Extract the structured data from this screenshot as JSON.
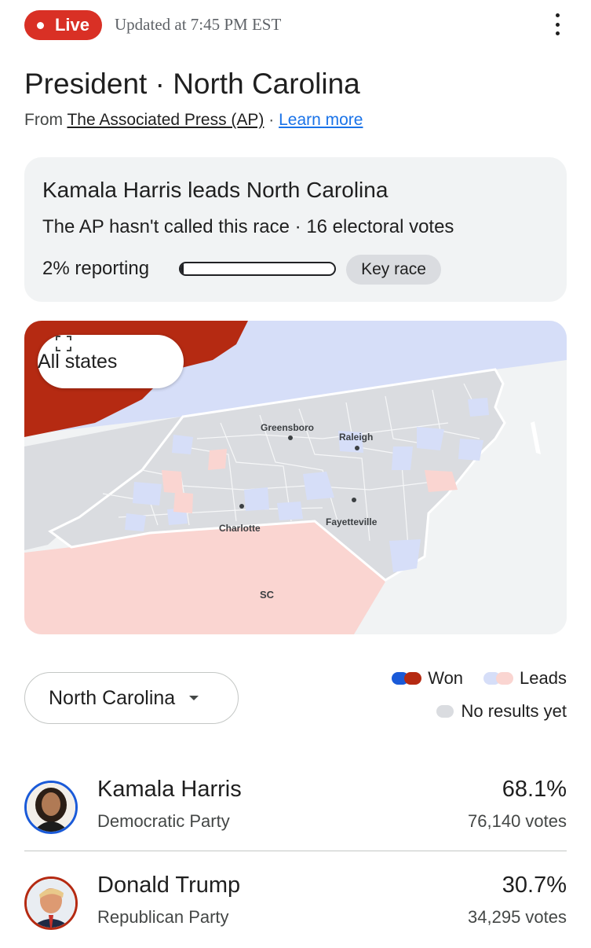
{
  "status": {
    "live_label": "Live",
    "updated": "Updated at 7:45 PM EST"
  },
  "title": "President · North Carolina",
  "source": {
    "prefix": "From",
    "name": "The Associated Press (AP)",
    "separator": "·",
    "learn_more": "Learn more"
  },
  "race": {
    "headline": "Kamala Harris leads North Carolina",
    "subline": "The AP hasn't called this race · 16 electoral votes",
    "reporting_label": "2% reporting",
    "reporting_fraction": 0.02,
    "key_race": "Key race"
  },
  "map": {
    "all_states_label": "All states",
    "cities": [
      "Greensboro",
      "Raleigh",
      "Charlotte",
      "Fayetteville"
    ],
    "neighbor_label": "SC"
  },
  "state_select": {
    "value": "North Carolina"
  },
  "legend": {
    "won": "Won",
    "leads": "Leads",
    "no_results": "No results yet"
  },
  "colors": {
    "live": "#d93025",
    "dem_won": "#1a5ad8",
    "rep_won": "#b52a12",
    "dem_leads": "#d6def8",
    "rep_leads": "#fad5d1",
    "no_results": "#dadce0",
    "link": "#1a73e8"
  },
  "candidates": [
    {
      "name": "Kamala Harris",
      "party": "Democratic Party",
      "percent": "68.1%",
      "votes": "76,140 votes",
      "ring_color": "#1a5ad8"
    },
    {
      "name": "Donald Trump",
      "party": "Republican Party",
      "percent": "30.7%",
      "votes": "34,295 votes",
      "ring_color": "#b52a12"
    }
  ]
}
